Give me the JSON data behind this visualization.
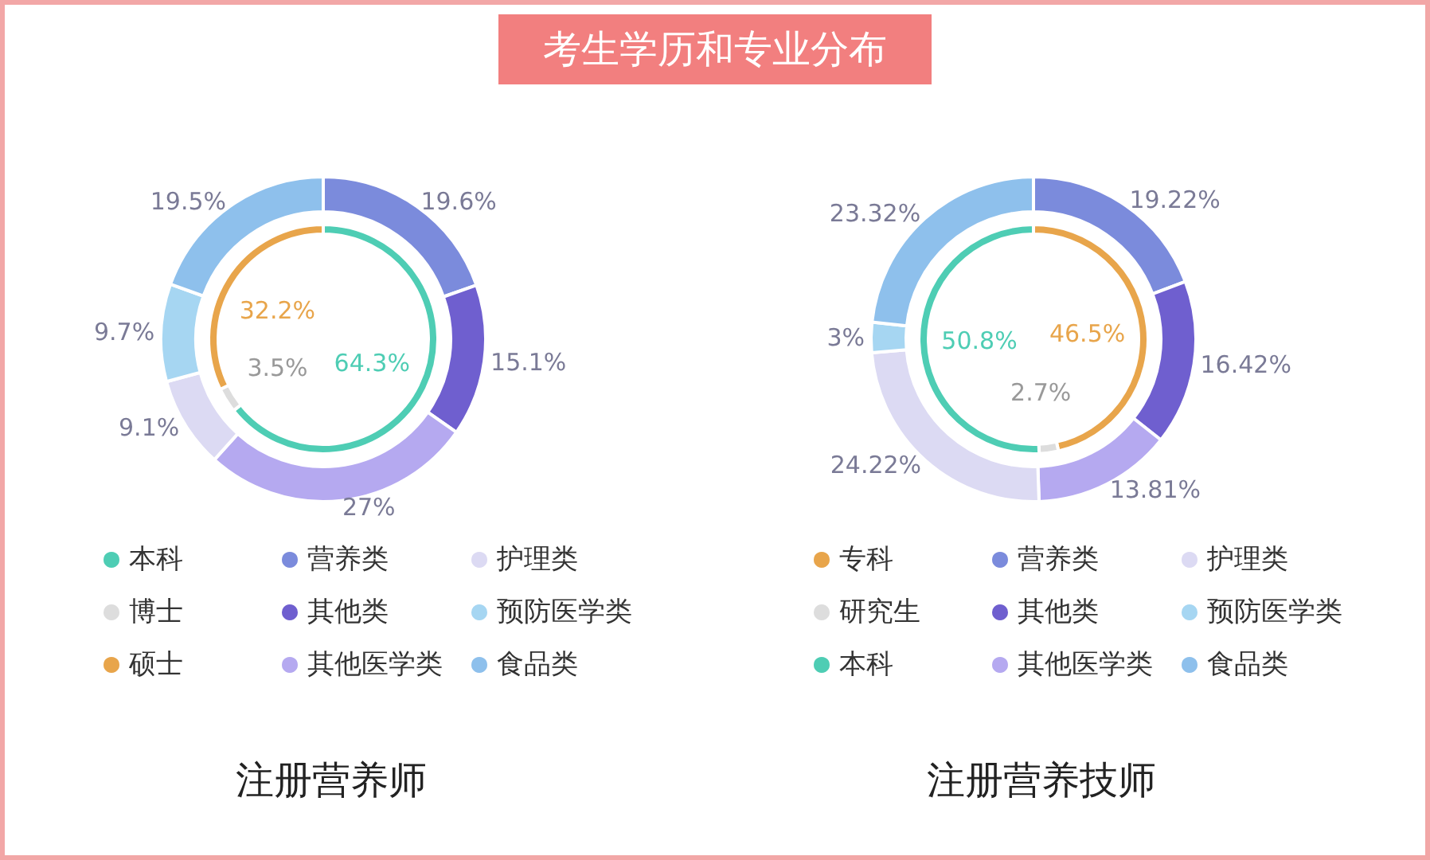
{
  "chart_data": [
    {
      "type": "donut",
      "annotations": [
        "考生学历和专业分布"
      ],
      "legend": "bottom",
      "categories": [
        "本科",
        "博士",
        "硕士"
      ],
      "values": [
        64.3,
        3.5,
        32.2
      ],
      "colors": [
        "#4ecdb4",
        "#dddddd",
        "#e8a54b"
      ],
      "value_labels": [
        "64.3%",
        "3.5%",
        "32.2%"
      ]
    },
    {
      "type": "donut",
      "title": "注册营养师",
      "legend": "bottom",
      "categories": [
        "营养类",
        "其他类",
        "其他医学类",
        "护理类",
        "预防医学类",
        "食品类"
      ],
      "values": [
        19.6,
        15.1,
        27,
        9.1,
        9.7,
        19.5
      ],
      "colors": [
        "#7b8bdc",
        "#6f5fcf",
        "#b5a9f0",
        "#dcdaf3",
        "#a6d6f2",
        "#8ec0ec"
      ],
      "value_labels": [
        "19.6%",
        "15.1%",
        "27%",
        "9.1%",
        "9.7%",
        "19.5%"
      ]
    },
    {
      "type": "donut",
      "legend": "bottom",
      "categories": [
        "专科",
        "研究生",
        "本科"
      ],
      "values": [
        46.5,
        2.7,
        50.8
      ],
      "colors": [
        "#e8a54b",
        "#dddddd",
        "#4ecdb4"
      ],
      "value_labels": [
        "46.5%",
        "2.7%",
        "50.8%"
      ]
    },
    {
      "type": "donut",
      "title": "注册营养技师",
      "legend": "bottom",
      "categories": [
        "营养类",
        "其他类",
        "其他医学类",
        "护理类",
        "预防医学类",
        "食品类"
      ],
      "values": [
        19.22,
        16.42,
        13.81,
        24.22,
        3,
        23.32
      ],
      "colors": [
        "#7b8bdc",
        "#6f5fcf",
        "#b5a9f0",
        "#dcdaf3",
        "#a6d6f2",
        "#8ec0ec"
      ],
      "value_labels": [
        "19.22%",
        "16.42%",
        "13.81%",
        "24.22%",
        "3%",
        "23.32%"
      ]
    }
  ]
}
